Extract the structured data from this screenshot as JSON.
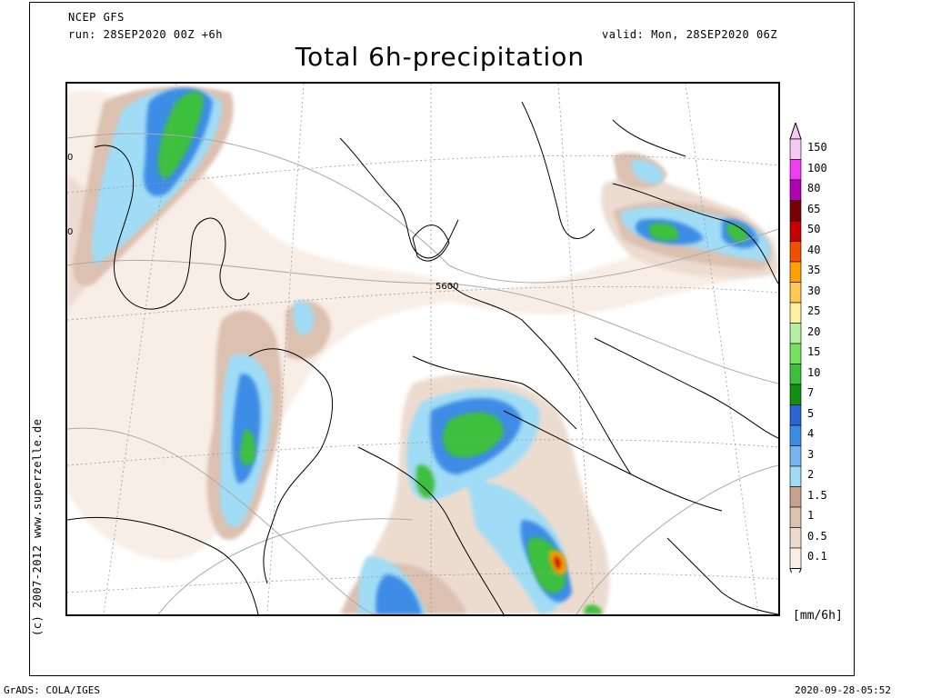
{
  "header": {
    "model": "NCEP GFS",
    "run": "run: 28SEP2020 00Z +6h",
    "valid": "valid: Mon, 28SEP2020 06Z"
  },
  "title": "Total 6h-precipitation",
  "copyright": "(c) 2007-2012 www.superzelle.de",
  "footer": {
    "left": "GrADS: COLA/IGES",
    "right": "2020-09-28-05:52"
  },
  "contour_label": "5600",
  "edge_labels": [
    "0",
    "0"
  ],
  "legend": {
    "units": "[mm/6h]",
    "items": [
      {
        "label": "150",
        "color": "#f5c8f5"
      },
      {
        "label": "100",
        "color": "#f03cf0"
      },
      {
        "label": "80",
        "color": "#b400b4"
      },
      {
        "label": "65",
        "color": "#780000"
      },
      {
        "label": "50",
        "color": "#c80000"
      },
      {
        "label": "40",
        "color": "#f05000"
      },
      {
        "label": "35",
        "color": "#ffa000"
      },
      {
        "label": "30",
        "color": "#ffc850"
      },
      {
        "label": "25",
        "color": "#fff0a0"
      },
      {
        "label": "20",
        "color": "#b4f0a0"
      },
      {
        "label": "15",
        "color": "#78e060"
      },
      {
        "label": "10",
        "color": "#3cc03c"
      },
      {
        "label": "7",
        "color": "#109010"
      },
      {
        "label": "5",
        "color": "#2864d2"
      },
      {
        "label": "4",
        "color": "#3c8ce6"
      },
      {
        "label": "3",
        "color": "#78b4f0"
      },
      {
        "label": "2",
        "color": "#a0dcf5"
      },
      {
        "label": "1.5",
        "color": "#c8a090"
      },
      {
        "label": "1",
        "color": "#dcc0b0"
      },
      {
        "label": "0.5",
        "color": "#ecdcd0"
      },
      {
        "label": "0.1",
        "color": "#f8eee6"
      }
    ]
  }
}
